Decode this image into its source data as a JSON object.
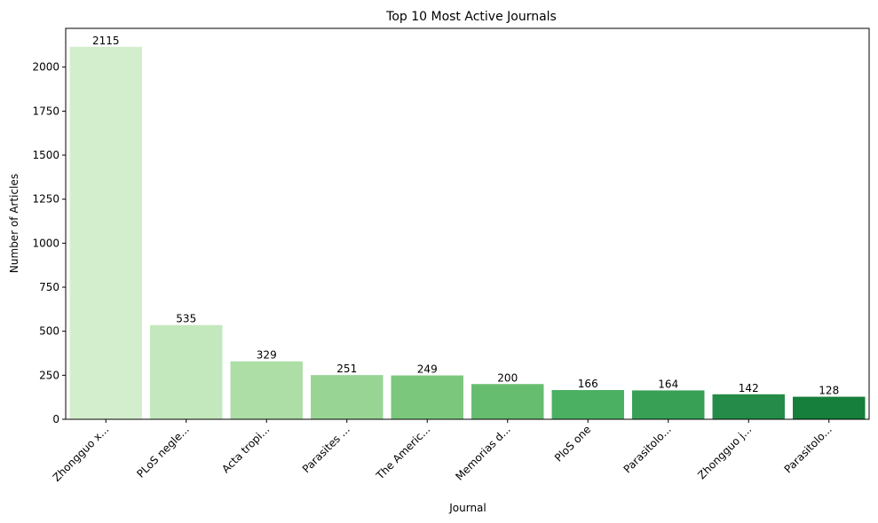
{
  "chart_data": {
    "type": "bar",
    "title": "Top 10 Most Active Journals",
    "xlabel": "Journal",
    "ylabel": "Number of Articles",
    "categories": [
      "Zhongguo x...",
      "PLoS negle...",
      "Acta tropi...",
      "Parasites ...",
      "The Americ...",
      "Memorias d...",
      "PloS one",
      "Parasitolo...",
      "Zhongguo j...",
      "Parasitolo..."
    ],
    "values": [
      2115,
      535,
      329,
      251,
      249,
      200,
      166,
      164,
      142,
      128
    ],
    "ylim": [
      0,
      2220
    ],
    "yticks": [
      0,
      250,
      500,
      750,
      1000,
      1250,
      1500,
      1750,
      2000
    ],
    "grid": false,
    "colors": [
      "#d3eecd",
      "#c4e8bd",
      "#acdea6",
      "#98d594",
      "#7bc87c",
      "#66bd6f",
      "#4bb062",
      "#37a055",
      "#248c48",
      "#157f3b"
    ]
  }
}
